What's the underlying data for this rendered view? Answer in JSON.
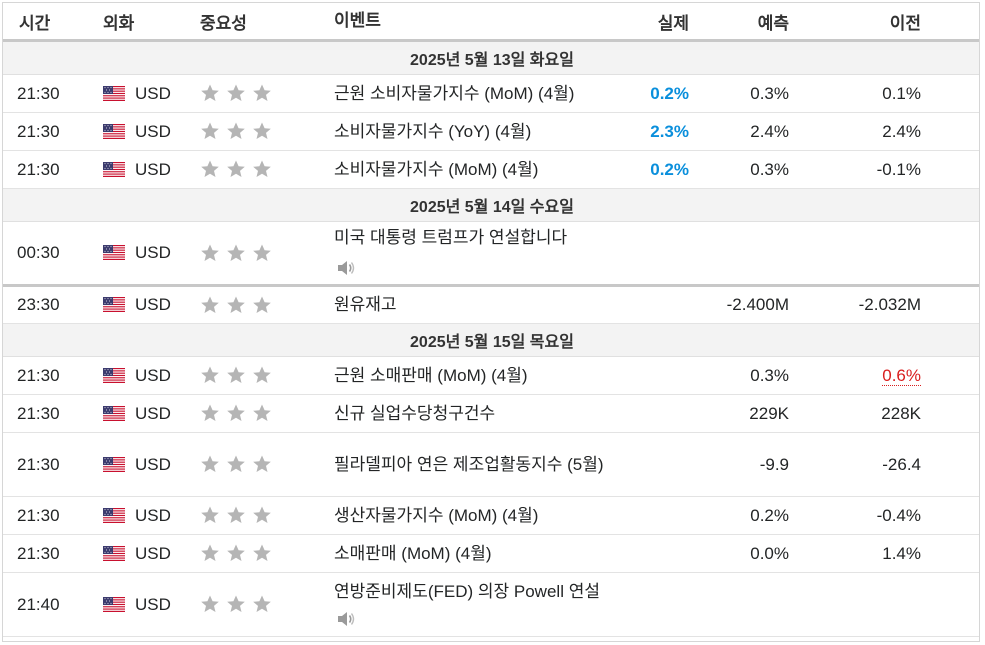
{
  "header": {
    "time": "시간",
    "currency": "외화",
    "importance": "중요성",
    "event": "이벤트",
    "actual": "실제",
    "forecast": "예측",
    "previous": "이전"
  },
  "groups": [
    {
      "date": "2025년 5월 13일 화요일",
      "rows": [
        {
          "time": "21:30",
          "currency": "USD",
          "event": "근원 소비자물가지수 (MoM) (4월)",
          "actual": "0.2%",
          "forecast": "0.3%",
          "previous": "0.1%"
        },
        {
          "time": "21:30",
          "currency": "USD",
          "event": "소비자물가지수 (YoY) (4월)",
          "actual": "2.3%",
          "forecast": "2.4%",
          "previous": "2.4%"
        },
        {
          "time": "21:30",
          "currency": "USD",
          "event": "소비자물가지수 (MoM) (4월)",
          "actual": "0.2%",
          "forecast": "0.3%",
          "previous": "-0.1%"
        }
      ]
    },
    {
      "date": "2025년 5월 14일 수요일",
      "rows": [
        {
          "time": "00:30",
          "currency": "USD",
          "event": "미국 대통령 트럼프가 연설합니다",
          "actual": "",
          "forecast": "",
          "previous": ""
        },
        {
          "time": "23:30",
          "currency": "USD",
          "event": "원유재고",
          "actual": "",
          "forecast": "-2.400M",
          "previous": "-2.032M"
        }
      ]
    },
    {
      "date": "2025년 5월 15일 목요일",
      "rows": [
        {
          "time": "21:30",
          "currency": "USD",
          "event": "근원 소매판매 (MoM) (4월)",
          "actual": "",
          "forecast": "0.3%",
          "previous": "0.6%"
        },
        {
          "time": "21:30",
          "currency": "USD",
          "event": "신규 실업수당청구건수",
          "actual": "",
          "forecast": "229K",
          "previous": "228K"
        },
        {
          "time": "21:30",
          "currency": "USD",
          "event": "필라델피아 연은 제조업활동지수 (5월)",
          "actual": "",
          "forecast": "-9.9",
          "previous": "-26.4"
        },
        {
          "time": "21:30",
          "currency": "USD",
          "event": "생산자물가지수 (MoM) (4월)",
          "actual": "",
          "forecast": "0.2%",
          "previous": "-0.4%"
        },
        {
          "time": "21:30",
          "currency": "USD",
          "event": "소매판매 (MoM) (4월)",
          "actual": "",
          "forecast": "0.0%",
          "previous": "1.4%"
        },
        {
          "time": "21:40",
          "currency": "USD",
          "event": "연방준비제도(FED) 의장 Powell 연설",
          "actual": "",
          "forecast": "",
          "previous": ""
        }
      ]
    }
  ],
  "importance_level": 3,
  "colors": {
    "actual_better": "#0a8fdc",
    "previous_revised": "#d91e1e",
    "star": "#b5b5b5"
  }
}
